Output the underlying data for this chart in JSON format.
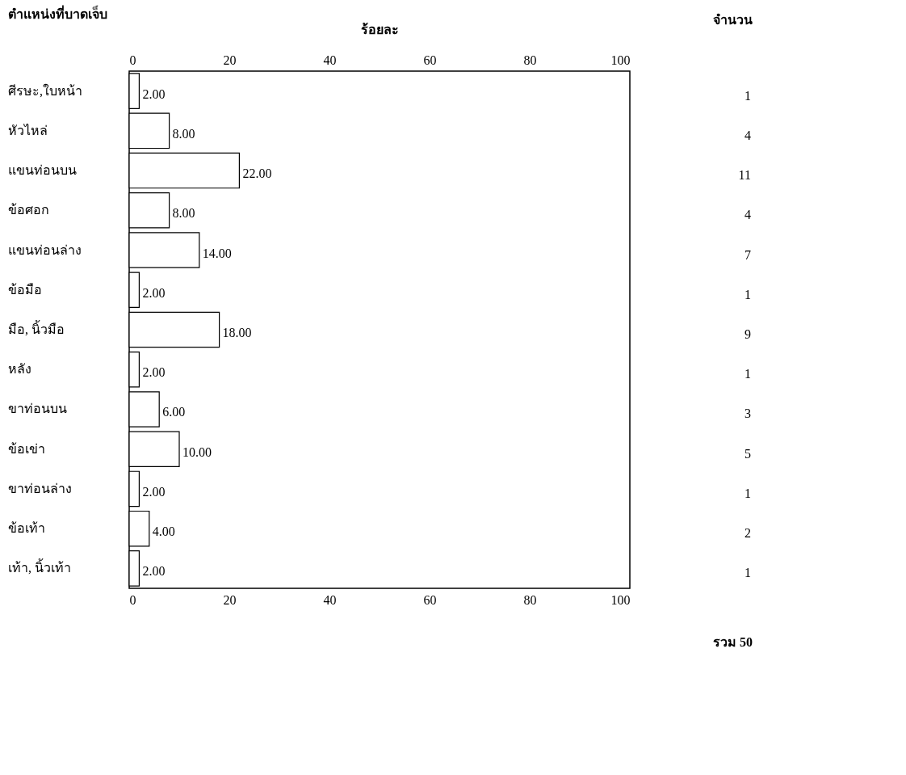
{
  "chart_data": {
    "type": "bar",
    "orientation": "horizontal",
    "ylabel": "ตำแหน่งที่บาดเจ็บ",
    "x2label": "ร้อยละ",
    "categories": [
      "ศีรษะ,ใบหน้า",
      "หัวไหล่",
      "แขนท่อนบน",
      "ข้อศอก",
      "แขนท่อนล่าง",
      "ข้อมือ",
      "มือ, นิ้วมือ",
      "หลัง",
      "ขาท่อนบน",
      "ข้อเข่า",
      "ขาท่อนล่าง",
      "ข้อเท้า",
      "เท้า, นิ้วเท้า"
    ],
    "values": [
      2,
      8,
      22,
      8,
      14,
      2,
      18,
      2,
      6,
      10,
      2,
      4,
      2
    ],
    "value_labels": [
      "2.00",
      "8.00",
      "22.00",
      "8.00",
      "14.00",
      "2.00",
      "18.00",
      "2.00",
      "6.00",
      "10.00",
      "2.00",
      "4.00",
      "2.00"
    ],
    "color": "#ffffff",
    "xlim": [
      0,
      100
    ],
    "xticks": [
      0,
      20,
      40,
      60,
      80,
      100
    ],
    "x2lim": [
      0,
      100
    ],
    "x2ticks": [
      0,
      20,
      40,
      60,
      80,
      100
    ],
    "grid": false,
    "annotations": [
      "จำนวน",
      "1",
      "4",
      "11",
      "4",
      "7",
      "1",
      "9",
      "1",
      "3",
      "5",
      "1",
      "2",
      "1",
      "รวม 50"
    ]
  }
}
